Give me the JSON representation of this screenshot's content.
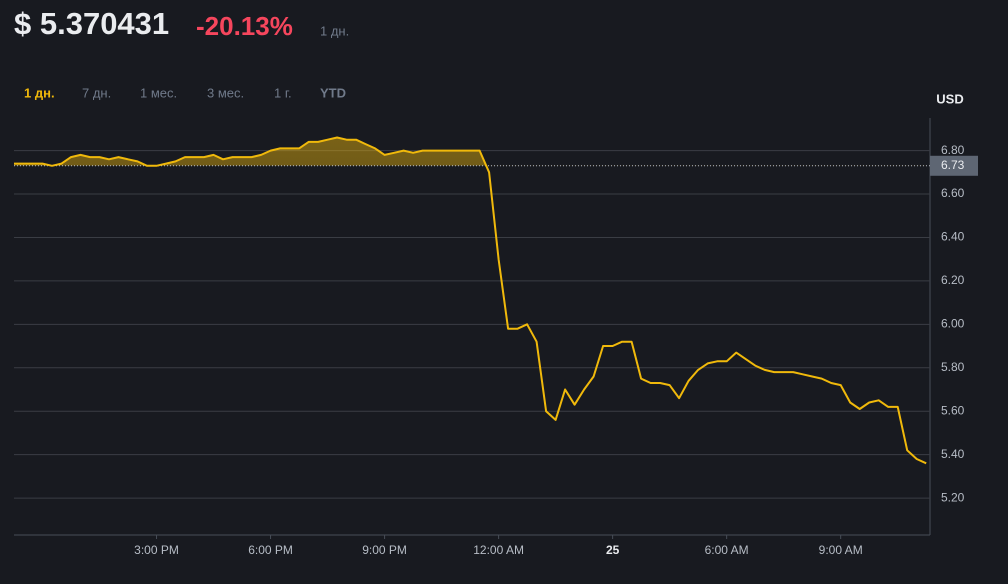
{
  "header": {
    "price": "$ 5.370431",
    "change": "-20.13%",
    "period": "1 дн."
  },
  "tabs": [
    "1 дн.",
    "7 дн.",
    "1 мес.",
    "3 мес.",
    "1 г.",
    "YTD"
  ],
  "chart_data": {
    "type": "line",
    "unit": "USD",
    "color": "#f0b90b",
    "grid": true,
    "reference_line": 6.73,
    "x": [
      11.25,
      11.5,
      11.75,
      12,
      12.25,
      12.5,
      12.75,
      13,
      13.25,
      13.5,
      13.75,
      14,
      14.25,
      14.5,
      14.75,
      15,
      15.25,
      15.5,
      15.75,
      16,
      16.25,
      16.5,
      16.75,
      17,
      17.25,
      17.5,
      17.75,
      18,
      18.25,
      18.5,
      18.75,
      19,
      19.25,
      19.5,
      19.75,
      20,
      20.25,
      20.5,
      20.75,
      21,
      21.25,
      21.5,
      21.75,
      22,
      22.25,
      22.5,
      22.75,
      23,
      23.25,
      23.5,
      23.75,
      24,
      24.25,
      24.5,
      24.75,
      25,
      25.25,
      25.5,
      25.75,
      26,
      26.25,
      26.5,
      26.75,
      27,
      27.25,
      27.5,
      27.75,
      28,
      28.25,
      28.5,
      28.75,
      29,
      29.25,
      29.5,
      29.75,
      30,
      30.25,
      30.5,
      30.75,
      31,
      31.25,
      31.5,
      31.75,
      32,
      32.25,
      32.5,
      32.75,
      33,
      33.25,
      33.5,
      33.75,
      34,
      34.25,
      34.5,
      34.75,
      35,
      35.25
    ],
    "values": [
      6.74,
      6.74,
      6.74,
      6.74,
      6.73,
      6.74,
      6.77,
      6.78,
      6.77,
      6.77,
      6.76,
      6.77,
      6.76,
      6.75,
      6.73,
      6.73,
      6.74,
      6.75,
      6.77,
      6.77,
      6.77,
      6.78,
      6.76,
      6.77,
      6.77,
      6.77,
      6.78,
      6.8,
      6.81,
      6.81,
      6.81,
      6.84,
      6.84,
      6.85,
      6.86,
      6.85,
      6.85,
      6.83,
      6.81,
      6.78,
      6.79,
      6.8,
      6.79,
      6.8,
      6.8,
      6.8,
      6.8,
      6.8,
      6.8,
      6.8,
      6.7,
      6.3,
      5.98,
      5.98,
      6.0,
      5.92,
      5.6,
      5.56,
      5.7,
      5.63,
      5.7,
      5.76,
      5.9,
      5.9,
      5.92,
      5.92,
      5.75,
      5.73,
      5.73,
      5.72,
      5.66,
      5.74,
      5.79,
      5.82,
      5.83,
      5.83,
      5.87,
      5.84,
      5.81,
      5.79,
      5.78,
      5.78,
      5.78,
      5.77,
      5.76,
      5.75,
      5.73,
      5.72,
      5.64,
      5.61,
      5.64,
      5.65,
      5.62,
      5.62,
      5.42,
      5.38,
      5.36
    ],
    "xlim": [
      11.25,
      35.35
    ],
    "xticks": [
      {
        "value": 15,
        "label": "3:00 PM"
      },
      {
        "value": 18,
        "label": "6:00 PM"
      },
      {
        "value": 21,
        "label": "9:00 PM"
      },
      {
        "value": 24,
        "label": "12:00 AM"
      },
      {
        "value": 27,
        "label": "25"
      },
      {
        "value": 30,
        "label": "6:00 AM"
      },
      {
        "value": 33,
        "label": "9:00 AM"
      }
    ],
    "ylim": [
      5.03,
      6.95
    ],
    "yticks": [
      {
        "value": 5.2,
        "label": "5.20"
      },
      {
        "value": 5.4,
        "label": "5.40"
      },
      {
        "value": 5.6,
        "label": "5.60"
      },
      {
        "value": 5.8,
        "label": "5.80"
      },
      {
        "value": 6,
        "label": "6.00"
      },
      {
        "value": 6.2,
        "label": "6.20"
      },
      {
        "value": 6.4,
        "label": "6.40"
      },
      {
        "value": 6.6,
        "label": "6.60"
      },
      {
        "value": 6.8,
        "label": "6.80"
      }
    ]
  }
}
